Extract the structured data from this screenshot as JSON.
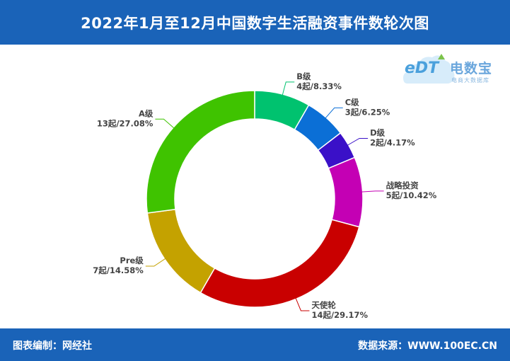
{
  "header": {
    "title": "2022年1月至12月中国数字生活融资事件数轮次图"
  },
  "logo": {
    "name": "电数宝",
    "sub": "电商大数据库",
    "mark": "eDT",
    "icon": "cloud-logo-icon"
  },
  "footer": {
    "credit": "图表编制：网经社",
    "source": "数据来源：WWW.100EC.CN"
  },
  "colors": {
    "header_bg": "#1a63b8",
    "slices": [
      "#00c26f",
      "#0b6fd6",
      "#3a10c8",
      "#c400b4",
      "#c90000",
      "#c4a200",
      "#3fc300"
    ]
  },
  "chart_data": {
    "type": "pie",
    "donut": true,
    "title": "2022年1月至12月中国数字生活融资事件数轮次图",
    "slices": [
      {
        "name": "B级",
        "value": 4,
        "label": "4起/8.33%"
      },
      {
        "name": "C级",
        "value": 3,
        "label": "3起/6.25%"
      },
      {
        "name": "D级",
        "value": 2,
        "label": "2起/4.17%"
      },
      {
        "name": "战略投资",
        "value": 5,
        "label": "5起/10.42%"
      },
      {
        "name": "天使轮",
        "value": 14,
        "label": "14起/29.17%"
      },
      {
        "name": "Pre级",
        "value": 7,
        "label": "7起/14.58%"
      },
      {
        "name": "A级",
        "value": 13,
        "label": "13起/27.08%"
      }
    ]
  }
}
